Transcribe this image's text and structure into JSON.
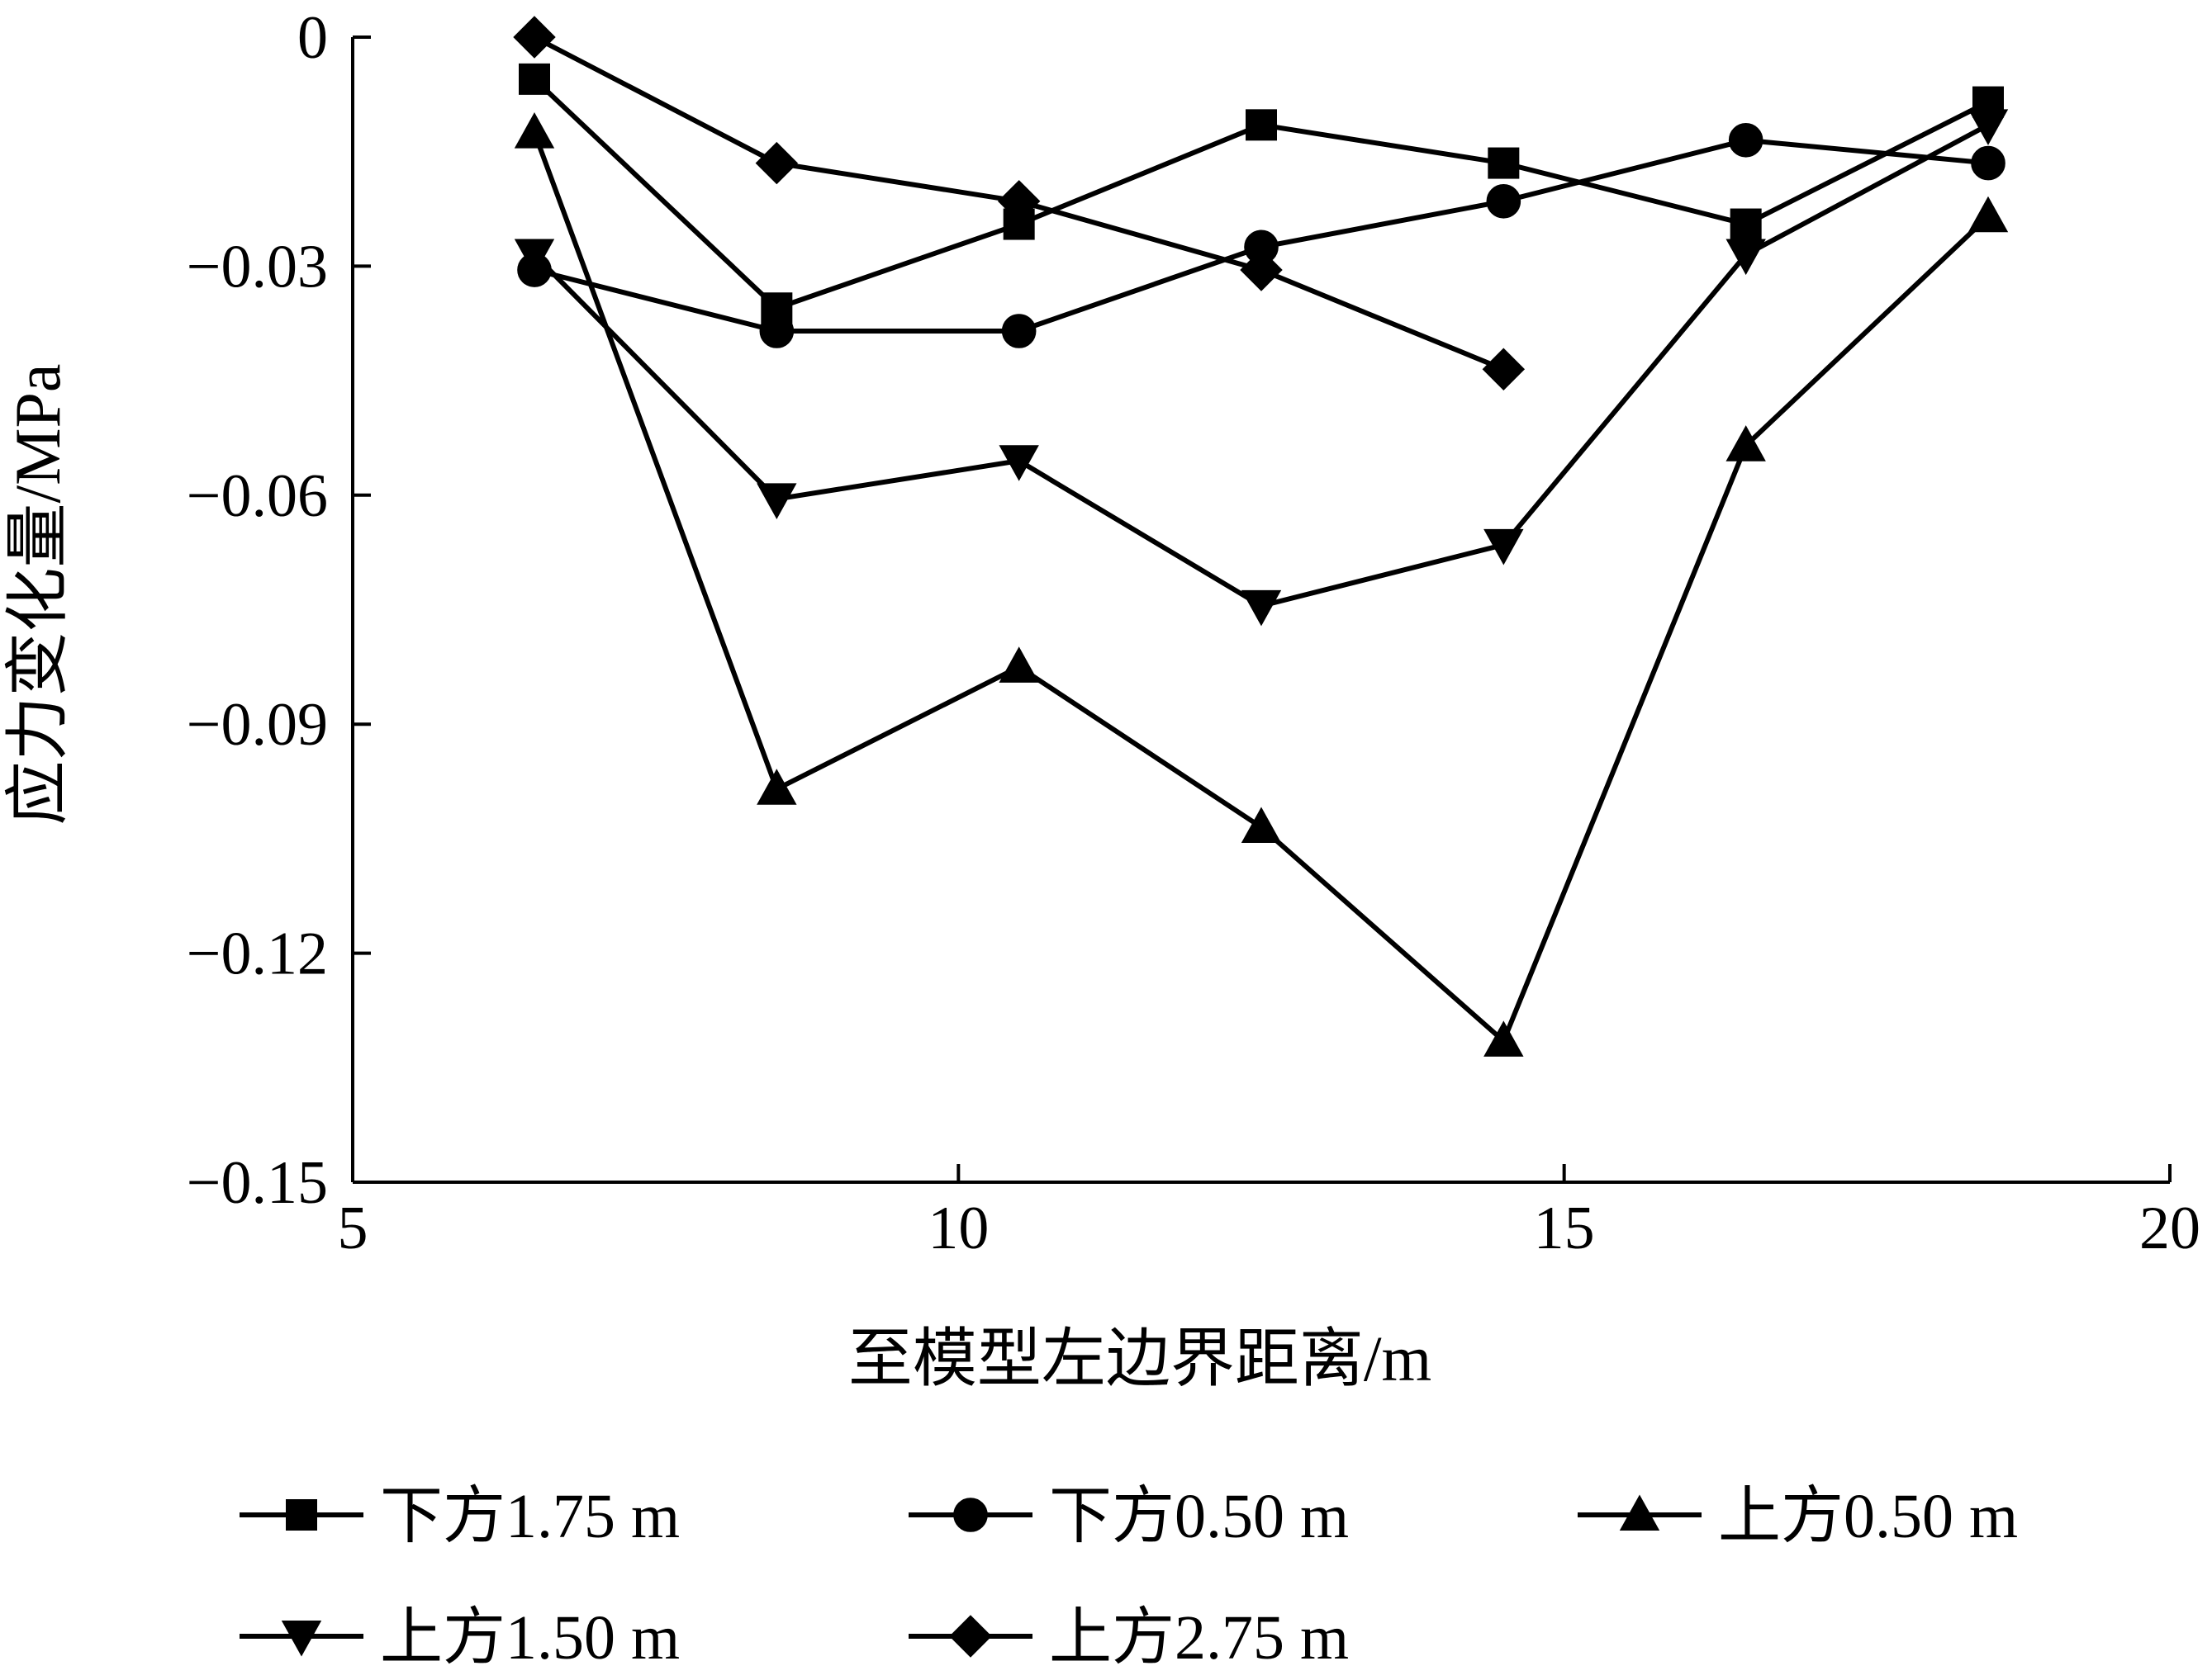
{
  "chart_data": {
    "type": "line",
    "xlabel": "至模型左边界距离/m",
    "ylabel": "应力变化量/MPa",
    "xlim": [
      5,
      20
    ],
    "ylim": [
      -0.15,
      0
    ],
    "xticks": [
      5,
      10,
      15,
      20
    ],
    "xtick_labels": [
      "5",
      "10",
      "15",
      "20"
    ],
    "yticks": [
      0,
      -0.03,
      -0.06,
      -0.09,
      -0.12,
      -0.15
    ],
    "ytick_labels": [
      "0",
      "−0.03",
      "−0.06",
      "−0.09",
      "−0.12",
      "−0.15"
    ],
    "grid": false,
    "legend_position": "bottom",
    "series": [
      {
        "name": "下方1.75 m",
        "marker": "square",
        "x": [
          6.5,
          8.5,
          10.5,
          12.5,
          14.5,
          16.5,
          18.5
        ],
        "y": [
          -0.0055,
          -0.0355,
          -0.0245,
          -0.0115,
          -0.0165,
          -0.0245,
          -0.0085
        ]
      },
      {
        "name": "下方0.50 m",
        "marker": "circle",
        "x": [
          6.5,
          8.5,
          10.5,
          12.5,
          14.5,
          16.5,
          18.5
        ],
        "y": [
          -0.0305,
          -0.0385,
          -0.0385,
          -0.0275,
          -0.0215,
          -0.0135,
          -0.0165
        ]
      },
      {
        "name": "上方0.50 m",
        "marker": "triangle-up",
        "x": [
          6.5,
          8.5,
          10.5,
          12.5,
          14.5,
          16.5,
          18.5
        ],
        "y": [
          -0.0125,
          -0.0985,
          -0.0825,
          -0.1035,
          -0.1315,
          -0.0535,
          -0.0235
        ]
      },
      {
        "name": "上方1.50 m",
        "marker": "triangle-down",
        "x": [
          6.5,
          8.5,
          10.5,
          12.5,
          14.5,
          16.5,
          18.5
        ],
        "y": [
          -0.0285,
          -0.0605,
          -0.0555,
          -0.0745,
          -0.0665,
          -0.0285,
          -0.0115
        ]
      },
      {
        "name": "上方2.75 m",
        "marker": "diamond",
        "x": [
          6.5,
          8.5,
          10.5,
          12.5,
          14.5
        ],
        "y": [
          0.0,
          -0.0165,
          -0.0215,
          -0.0305,
          -0.0435
        ]
      }
    ]
  }
}
